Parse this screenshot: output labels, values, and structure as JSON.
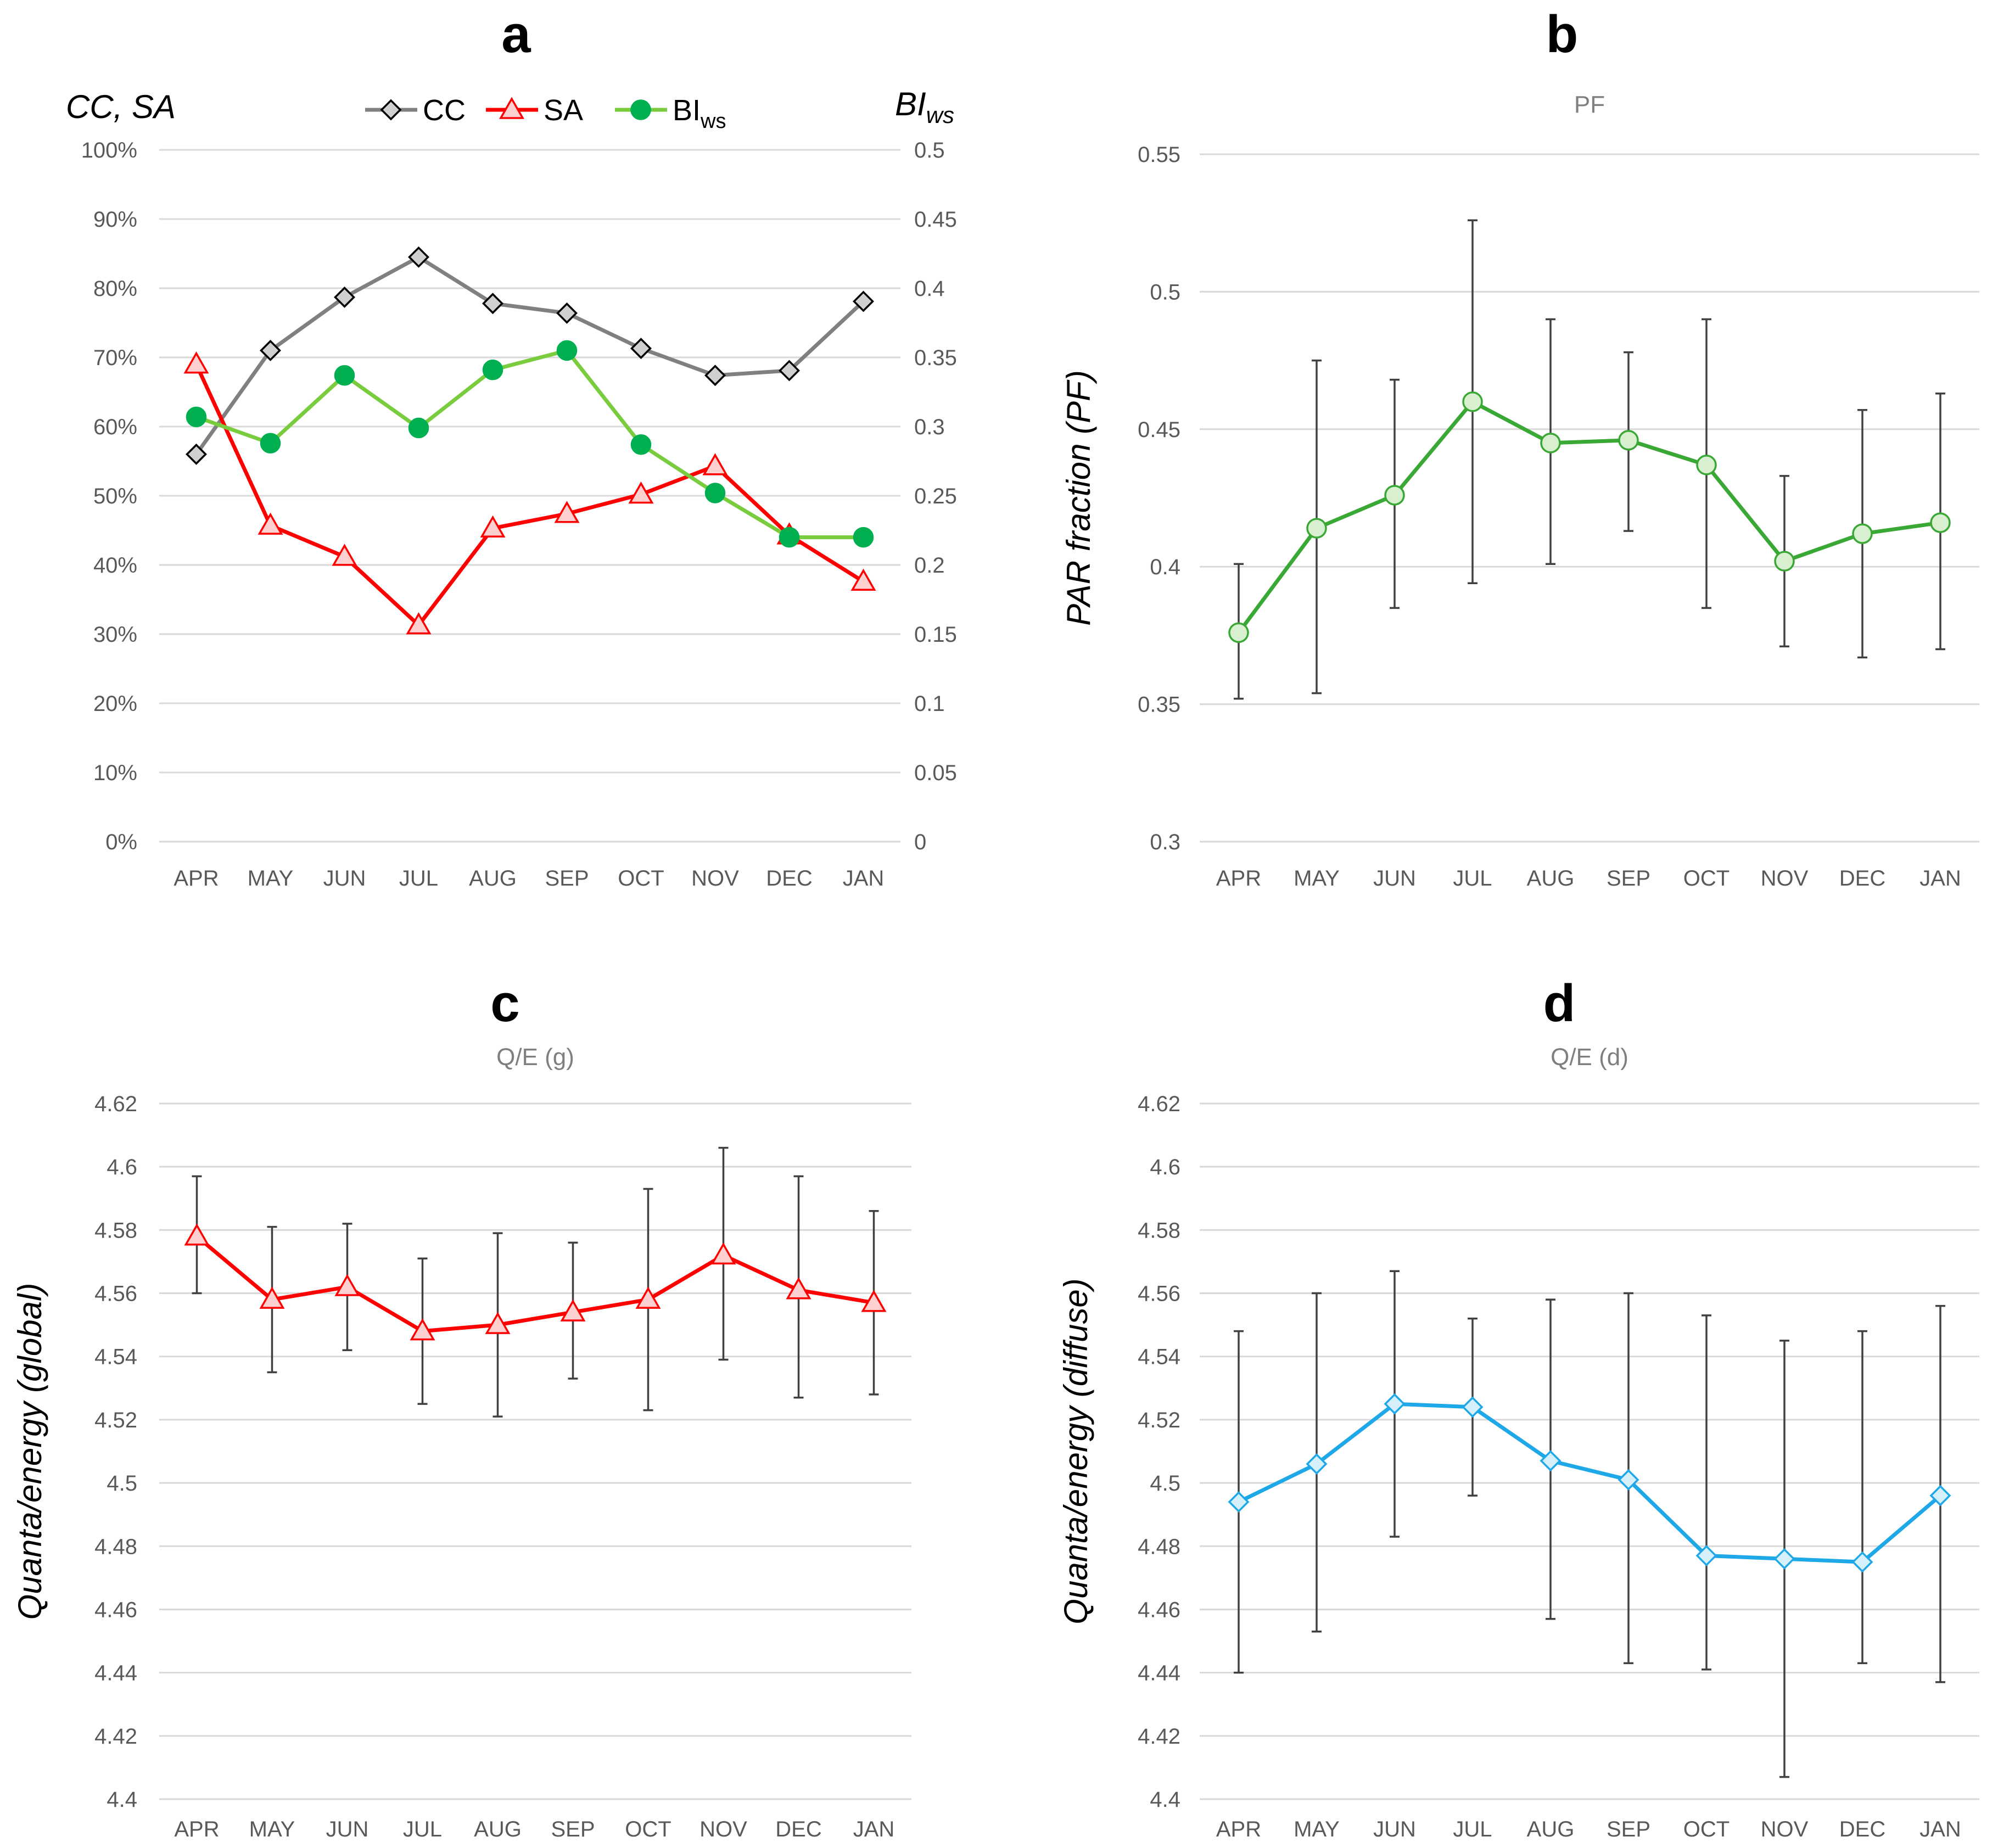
{
  "chart_data": [
    {
      "panel": "a",
      "type": "line",
      "title": "",
      "categories": [
        "APR",
        "MAY",
        "JUN",
        "JUL",
        "AUG",
        "SEP",
        "OCT",
        "NOV",
        "DEC",
        "JAN"
      ],
      "ylabel_left": "CC, SA",
      "ylabel_right": "BI",
      "ylabel_right_sub": "ws",
      "ylim_left": [
        0,
        100
      ],
      "ylim_right": [
        0,
        0.5
      ],
      "yticks_left": [
        "0%",
        "10%",
        "20%",
        "30%",
        "40%",
        "50%",
        "60%",
        "70%",
        "80%",
        "90%",
        "100%"
      ],
      "yticks_right": [
        "0",
        "0.05",
        "0.1",
        "0.15",
        "0.2",
        "0.25",
        "0.3",
        "0.35",
        "0.4",
        "0.45",
        "0.5"
      ],
      "legend": [
        {
          "label": "CC",
          "sub": ""
        },
        {
          "label": "SA",
          "sub": ""
        },
        {
          "label": "BI",
          "sub": "ws"
        }
      ],
      "series": [
        {
          "name": "CC",
          "axis": "left",
          "color": "#808080",
          "marker": "diamond",
          "marker_fill": "#d0d0d0",
          "marker_stroke": "#000000",
          "values": [
            56,
            71,
            78.7,
            84.5,
            77.8,
            76.4,
            71.3,
            67.4,
            68.1,
            78.1
          ]
        },
        {
          "name": "SA",
          "axis": "left",
          "color": "#ff0000",
          "marker": "triangle",
          "marker_fill": "#ffd0d0",
          "marker_stroke": "#ff0000",
          "values": [
            69,
            45.7,
            41.2,
            31.3,
            45.3,
            47.4,
            50.2,
            54.3,
            44.3,
            37.6
          ]
        },
        {
          "name": "BI_ws",
          "axis": "right",
          "color": "#7acc3f",
          "marker": "circle",
          "marker_fill": "#00b050",
          "marker_stroke": "#00b050",
          "values": [
            0.307,
            0.288,
            0.337,
            0.299,
            0.341,
            0.355,
            0.287,
            0.252,
            0.22,
            0.22
          ]
        }
      ]
    },
    {
      "panel": "b",
      "type": "line",
      "title": "PF",
      "categories": [
        "APR",
        "MAY",
        "JUN",
        "JUL",
        "AUG",
        "SEP",
        "OCT",
        "NOV",
        "DEC",
        "JAN"
      ],
      "ylabel": "PAR fraction (PF)",
      "ylim": [
        0.3,
        0.55
      ],
      "yticks": [
        "0.3",
        "0.35",
        "0.4",
        "0.45",
        "0.5",
        "0.55"
      ],
      "series": [
        {
          "name": "PF",
          "color": "#3aa835",
          "marker": "circle",
          "marker_fill": "#d8f0d0",
          "marker_stroke": "#3aa835",
          "values": [
            0.376,
            0.414,
            0.426,
            0.46,
            0.445,
            0.446,
            0.437,
            0.402,
            0.412,
            0.416
          ],
          "err_low": [
            0.352,
            0.354,
            0.385,
            0.394,
            0.401,
            0.413,
            0.385,
            0.371,
            0.367,
            0.37
          ],
          "err_high": [
            0.401,
            0.475,
            0.468,
            0.526,
            0.49,
            0.478,
            0.49,
            0.433,
            0.457,
            0.463
          ]
        }
      ]
    },
    {
      "panel": "c",
      "type": "line",
      "title": "Q/E (g)",
      "categories": [
        "APR",
        "MAY",
        "JUN",
        "JUL",
        "AUG",
        "SEP",
        "OCT",
        "NOV",
        "DEC",
        "JAN"
      ],
      "ylabel": "Quanta/energy (global)",
      "ylim": [
        4.4,
        4.62
      ],
      "yticks": [
        "4.4",
        "4.42",
        "4.44",
        "4.46",
        "4.48",
        "4.5",
        "4.52",
        "4.54",
        "4.56",
        "4.58",
        "4.6",
        "4.62"
      ],
      "series": [
        {
          "name": "Q/E (g)",
          "color": "#ff0000",
          "marker": "triangle",
          "marker_fill": "#ffd0d0",
          "marker_stroke": "#ff0000",
          "values": [
            4.578,
            4.558,
            4.562,
            4.548,
            4.55,
            4.554,
            4.558,
            4.572,
            4.561,
            4.557
          ],
          "err_low": [
            4.56,
            4.535,
            4.542,
            4.525,
            4.521,
            4.533,
            4.523,
            4.539,
            4.527,
            4.528
          ],
          "err_high": [
            4.597,
            4.581,
            4.582,
            4.571,
            4.579,
            4.576,
            4.593,
            4.606,
            4.597,
            4.586
          ]
        }
      ]
    },
    {
      "panel": "d",
      "type": "line",
      "title": "Q/E (d)",
      "categories": [
        "APR",
        "MAY",
        "JUN",
        "JUL",
        "AUG",
        "SEP",
        "OCT",
        "NOV",
        "DEC",
        "JAN"
      ],
      "ylabel": "Quanta/energy (diffuse)",
      "ylim": [
        4.4,
        4.62
      ],
      "yticks": [
        "4.4",
        "4.42",
        "4.44",
        "4.46",
        "4.48",
        "4.5",
        "4.52",
        "4.54",
        "4.56",
        "4.58",
        "4.6",
        "4.62"
      ],
      "series": [
        {
          "name": "Q/E (d)",
          "color": "#1ea8e8",
          "marker": "diamond",
          "marker_fill": "#d6f0fb",
          "marker_stroke": "#1ea8e8",
          "values": [
            4.494,
            4.506,
            4.525,
            4.524,
            4.507,
            4.501,
            4.477,
            4.476,
            4.475,
            4.496
          ],
          "err_low": [
            4.44,
            4.453,
            4.483,
            4.496,
            4.457,
            4.443,
            4.441,
            4.407,
            4.443,
            4.437
          ],
          "err_high": [
            4.548,
            4.56,
            4.567,
            4.552,
            4.558,
            4.56,
            4.553,
            4.545,
            4.548,
            4.556
          ]
        }
      ]
    }
  ]
}
